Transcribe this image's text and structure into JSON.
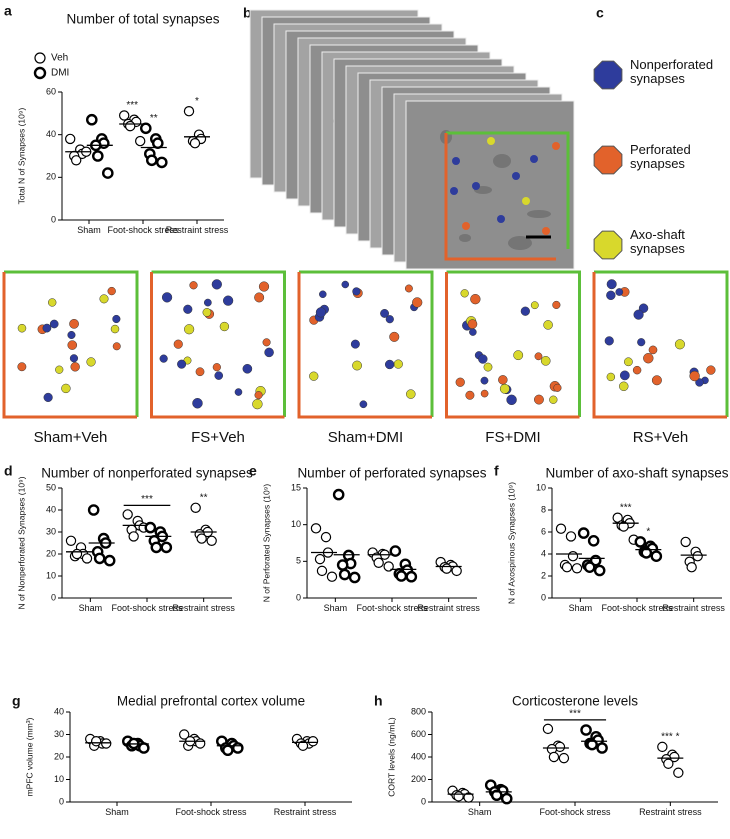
{
  "chart_data": [
    {
      "type": "dot",
      "panel": "a",
      "title": "Number of total synapses",
      "ylabel": "Total N of Synapses (10⁹)",
      "categories": [
        "Sham",
        "Foot-shock stress",
        "Restraint stress"
      ],
      "ylim": [
        0,
        60
      ],
      "yticks": [
        0,
        20,
        40,
        60
      ],
      "legend": "upper left",
      "series": [
        {
          "name": "Veh",
          "color": "#000000",
          "line_width": 1,
          "values": [
            [
              38,
              33,
              31,
              30,
              28,
              32
            ],
            [
              49,
              47,
              46,
              45,
              44,
              37
            ],
            [
              51,
              40,
              38,
              37,
              36
            ]
          ],
          "means": [
            32,
            45,
            39
          ],
          "significance": [
            null,
            "***",
            "*"
          ]
        },
        {
          "name": "DMI",
          "color": "#000000",
          "line_width": 2,
          "values": [
            [
              47,
              38,
              36,
              35,
              30,
              22
            ],
            [
              43,
              38,
              36,
              31,
              28,
              27
            ],
            null
          ],
          "means": [
            35,
            34,
            null
          ],
          "significance": [
            null,
            "**",
            null
          ]
        }
      ]
    },
    {
      "type": "dot",
      "panel": "d",
      "title": "Number of nonperforated synapses",
      "ylabel": "N of Nonperforated Synapses (10⁹)",
      "categories": [
        "Sham",
        "Foot-shock stress",
        "Restraint stress"
      ],
      "ylim": [
        0,
        50
      ],
      "yticks": [
        0,
        10,
        20,
        30,
        40,
        50
      ],
      "brackets": [
        null,
        "***",
        null
      ],
      "series": [
        {
          "color": "#000000",
          "line_width": 1,
          "values": [
            [
              26,
              23,
              20,
              19,
              20,
              18
            ],
            [
              38,
              35,
              33,
              31,
              28,
              32
            ],
            [
              41,
              31,
              30,
              29,
              27,
              26
            ]
          ],
          "means": [
            21,
            33,
            30
          ],
          "significance": [
            null,
            null,
            "**"
          ]
        },
        {
          "color": "#000000",
          "line_width": 2,
          "values": [
            [
              40,
              27,
              25,
              21,
              18,
              17
            ],
            [
              32,
              30,
              28,
              26,
              23,
              23
            ],
            null
          ],
          "means": [
            25,
            28,
            null
          ]
        }
      ]
    },
    {
      "type": "dot",
      "panel": "e",
      "title": "Number of perforated synapses",
      "ylabel": "N of Perforated Synapses (10⁹)",
      "categories": [
        "Sham",
        "Foot-shock stress",
        "Restraint stress"
      ],
      "ylim": [
        0,
        15
      ],
      "yticks": [
        0,
        5,
        10,
        15
      ],
      "series": [
        {
          "color": "#000000",
          "line_width": 1,
          "values": [
            [
              9.5,
              8.3,
              6.2,
              5.3,
              3.7,
              2.9
            ],
            [
              6.2,
              6.0,
              5.9,
              5.5,
              4.8,
              4.3
            ],
            [
              4.9,
              4.5,
              4.3,
              4.2,
              4.0,
              3.7
            ]
          ],
          "means": [
            6.2,
            5.9,
            4.3
          ]
        },
        {
          "color": "#000000",
          "line_width": 2,
          "values": [
            [
              14.1,
              5.8,
              4.7,
              4.5,
              3.2,
              2.8
            ],
            [
              6.4,
              4.6,
              3.8,
              3.3,
              3.0,
              2.9
            ],
            null
          ],
          "means": [
            5.9,
            3.9,
            null
          ]
        }
      ]
    },
    {
      "type": "dot",
      "panel": "f",
      "title": "Number of axo-shaft synapses",
      "ylabel": "N of Axospinous Synapses (10⁹)",
      "categories": [
        "Sham",
        "Foot-shock stress",
        "Restraint stress"
      ],
      "ylim": [
        0,
        10
      ],
      "yticks": [
        0,
        2,
        4,
        6,
        8,
        10
      ],
      "series": [
        {
          "color": "#000000",
          "line_width": 1,
          "values": [
            [
              6.3,
              5.6,
              3.8,
              3.0,
              2.8,
              2.7
            ],
            [
              7.3,
              7.1,
              6.8,
              6.6,
              6.5,
              5.3
            ],
            [
              5.1,
              4.2,
              3.8,
              3.3,
              2.8
            ]
          ],
          "means": [
            4.0,
            6.8,
            3.9
          ],
          "significance": [
            null,
            "***",
            null
          ]
        },
        {
          "color": "#000000",
          "line_width": 2,
          "values": [
            [
              5.9,
              5.2,
              3.4,
              3.0,
              2.8,
              2.5
            ],
            [
              5.1,
              4.7,
              4.5,
              4.2,
              4.1,
              3.8
            ],
            null
          ],
          "means": [
            3.6,
            4.4,
            null
          ],
          "significance": [
            null,
            "*",
            null
          ]
        }
      ]
    },
    {
      "type": "dot",
      "panel": "g",
      "title": "Medial prefrontal cortex volume",
      "ylabel": "mPFC volume (mm³)",
      "categories": [
        "Sham",
        "Foot-shock stress",
        "Restraint stress"
      ],
      "ylim": [
        0,
        40
      ],
      "yticks": [
        0,
        10,
        20,
        30,
        40
      ],
      "series": [
        {
          "color": "#000000",
          "line_width": 1,
          "values": [
            [
              28,
              27,
              26,
              25,
              27,
              26
            ],
            [
              30,
              28,
              27,
              25,
              27,
              26
            ],
            [
              28,
              27,
              26,
              26,
              25,
              27
            ]
          ],
          "means": [
            26.3,
            27,
            26.5
          ]
        },
        {
          "color": "#000000",
          "line_width": 2,
          "values": [
            [
              27,
              26,
              25,
              25,
              26,
              24
            ],
            [
              27,
              26,
              25,
              24,
              23,
              24
            ],
            null
          ],
          "means": [
            25.8,
            25,
            null
          ]
        }
      ]
    },
    {
      "type": "dot",
      "panel": "h",
      "title": "Corticosterone levels",
      "ylabel": "CORT levels (ng/mL)",
      "categories": [
        "Sham",
        "Foot-shock stress",
        "Restraint stress"
      ],
      "ylim": [
        0,
        800
      ],
      "yticks": [
        0,
        200,
        400,
        600,
        800
      ],
      "brackets": [
        null,
        "***",
        null
      ],
      "series": [
        {
          "color": "#000000",
          "line_width": 1,
          "values": [
            [
              100,
              80,
              70,
              60,
              50,
              40
            ],
            [
              650,
              500,
              490,
              470,
              400,
              390
            ],
            [
              490,
              420,
              400,
              380,
              340,
              260
            ]
          ],
          "means": [
            70,
            480,
            390
          ],
          "significance": [
            null,
            null,
            "*** *"
          ]
        },
        {
          "color": "#000000",
          "line_width": 2,
          "values": [
            [
              150,
              110,
              100,
              90,
              60,
              30
            ],
            [
              640,
              580,
              550,
              520,
              510,
              480
            ],
            null
          ],
          "means": [
            90,
            540,
            null
          ]
        }
      ]
    }
  ],
  "figure": {
    "panel_b": "b",
    "panel_c": "c",
    "synapse_types": [
      {
        "label": "Nonperforated synapses",
        "color": "#2e3c9c"
      },
      {
        "label": "Perforated synapses",
        "color": "#e2622b"
      },
      {
        "label": "Axo-shaft synapses",
        "color": "#d8d82c"
      }
    ],
    "conditions": [
      "Sham+Veh",
      "FS+Veh",
      "Sham+DMI",
      "FS+DMI",
      "RS+Veh"
    ]
  }
}
